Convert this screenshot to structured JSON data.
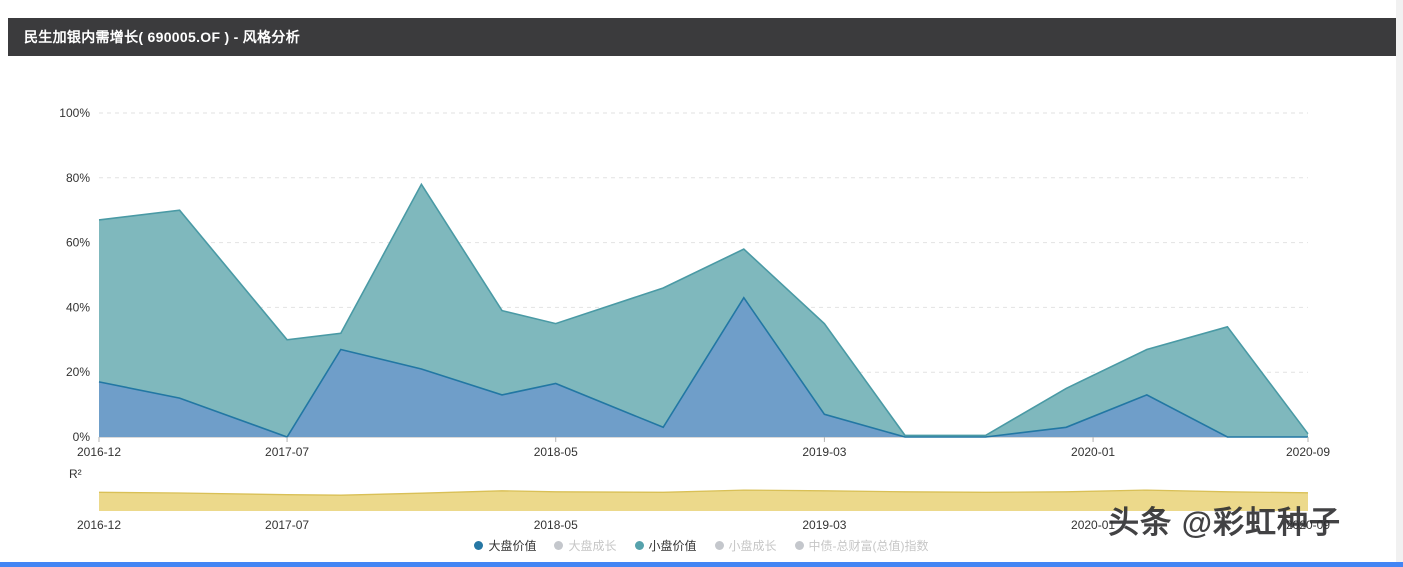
{
  "header": {
    "title": "民生加银内需增长( 690005.OF ) - 风格分析"
  },
  "r2_label": "R²",
  "watermark": {
    "text": "头条 @彩虹种子"
  },
  "legend": {
    "items": [
      {
        "label": "大盘价值",
        "color": "#2677a4",
        "active": true
      },
      {
        "label": "大盘成长",
        "color": "#c4c7cc",
        "active": false
      },
      {
        "label": "小盘价值",
        "color": "#56a2ac",
        "active": true
      },
      {
        "label": "小盘成长",
        "color": "#c4c7cc",
        "active": false
      },
      {
        "label": "中债-总财富(总值)指数",
        "color": "#c4c7cc",
        "active": false
      }
    ]
  },
  "colors": {
    "header_bg": "#3b3b3d",
    "accent_bar": "#4285f4",
    "grid": "#e2e2e2",
    "axis": "#b4b4b4",
    "tick_text": "#333333",
    "inactive_text": "#c6c6c6"
  },
  "chart_data": [
    {
      "type": "area",
      "stacked": true,
      "title": "风格分析",
      "x": [
        "2016-12",
        "2017-03",
        "2017-07",
        "2017-09",
        "2017-12",
        "2018-03",
        "2018-05",
        "2018-09",
        "2018-12",
        "2019-03",
        "2019-06",
        "2019-09",
        "2019-12",
        "2020-03",
        "2020-06",
        "2020-09"
      ],
      "series": [
        {
          "name": "大盘价值",
          "values": [
            17,
            12,
            0,
            27,
            21,
            13,
            16.5,
            3,
            43,
            7,
            0,
            0,
            3,
            13,
            0,
            0
          ],
          "line_color": "#2277a3",
          "fill_color": "#6f9ec9"
        },
        {
          "name": "小盘价值",
          "values": [
            50,
            58,
            30,
            5,
            57,
            26,
            18.5,
            43,
            15,
            28,
            0.5,
            0.5,
            12,
            14,
            34,
            1
          ],
          "line_color": "#4a9aa5",
          "fill_color": "#7fb8bd"
        }
      ],
      "ylim": [
        0,
        100
      ],
      "y_ticks": [
        0,
        20,
        40,
        60,
        80,
        100
      ],
      "y_tick_suffix": "%",
      "x_ticks": [
        "2016-12",
        "2017-07",
        "2018-05",
        "2019-03",
        "2020-01",
        "2020-09"
      ],
      "grid": "dashed-horizontal",
      "legend_position": "bottom"
    },
    {
      "type": "area",
      "title": "R²",
      "x": [
        "2016-12",
        "2017-03",
        "2017-07",
        "2017-09",
        "2017-12",
        "2018-03",
        "2018-05",
        "2018-09",
        "2018-12",
        "2019-03",
        "2019-06",
        "2019-09",
        "2019-12",
        "2020-03",
        "2020-06",
        "2020-09"
      ],
      "values": [
        0.78,
        0.75,
        0.68,
        0.66,
        0.74,
        0.84,
        0.8,
        0.78,
        0.87,
        0.84,
        0.8,
        0.78,
        0.8,
        0.87,
        0.8,
        0.76
      ],
      "ylim": [
        0,
        1
      ],
      "fill_color": "#ecd98b",
      "line_color": "#d9c057",
      "x_ticks": [
        "2016-12",
        "2017-07",
        "2018-05",
        "2019-03",
        "2020-01",
        "2020-09"
      ]
    }
  ]
}
